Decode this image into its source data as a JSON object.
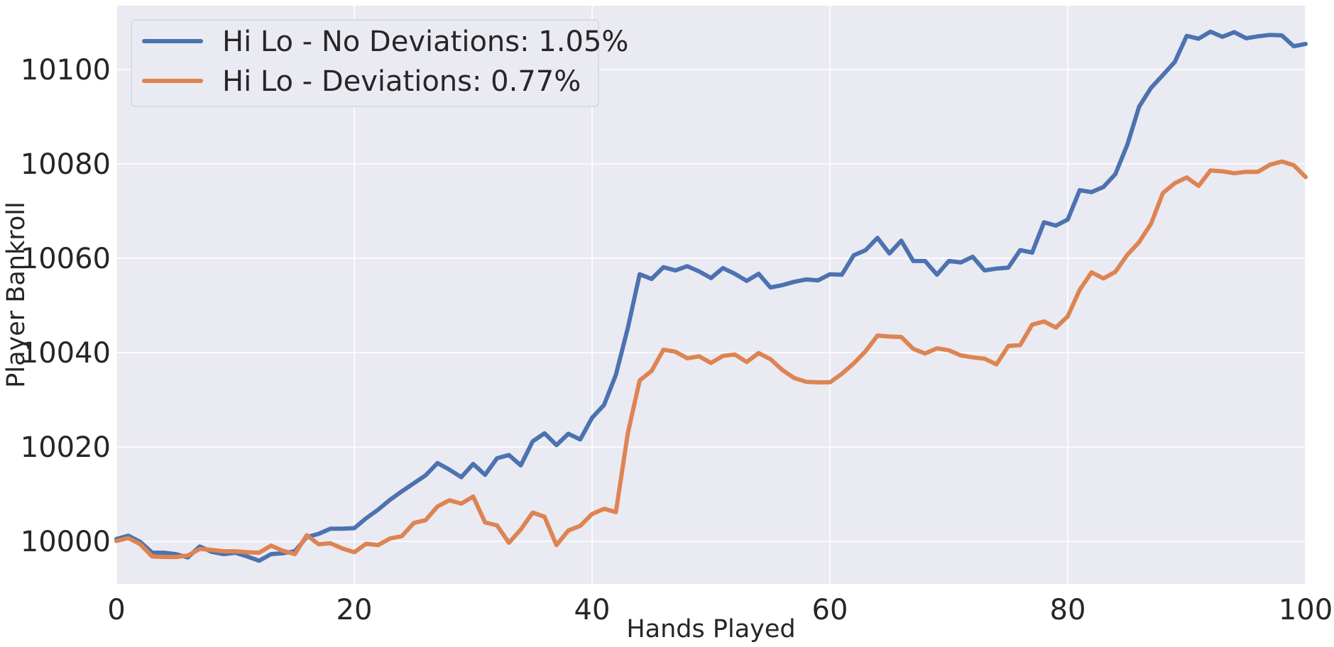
{
  "chart_data": {
    "type": "line",
    "title": "",
    "xlabel": "Hands Played",
    "ylabel": "Player Bankroll",
    "xlim": [
      0,
      100
    ],
    "ylim": [
      9991,
      10113.5
    ],
    "xticks": [
      0,
      20,
      40,
      60,
      80,
      100
    ],
    "xtick_labels": [
      "0",
      "20",
      "40",
      "60",
      "80",
      "100"
    ],
    "yticks": [
      10000,
      10020,
      10040,
      10060,
      10080,
      10100
    ],
    "ytick_labels": [
      "10000",
      "10020",
      "10040",
      "10060",
      "10080",
      "10100"
    ],
    "grid": true,
    "legend_position": "top-left",
    "background_color": "#eaeaf2",
    "grid_color": "#ffffff",
    "x": [
      0,
      1,
      2,
      3,
      4,
      5,
      6,
      7,
      8,
      9,
      10,
      11,
      12,
      13,
      14,
      15,
      16,
      17,
      18,
      19,
      20,
      21,
      22,
      23,
      24,
      25,
      26,
      27,
      28,
      29,
      30,
      31,
      32,
      33,
      34,
      35,
      36,
      37,
      38,
      39,
      40,
      41,
      42,
      43,
      44,
      45,
      46,
      47,
      48,
      49,
      50,
      51,
      52,
      53,
      54,
      55,
      56,
      57,
      58,
      59,
      60,
      61,
      62,
      63,
      64,
      65,
      66,
      67,
      68,
      69,
      70,
      71,
      72,
      73,
      74,
      75,
      76,
      77,
      78,
      79,
      80,
      81,
      82,
      83,
      84,
      85,
      86,
      87,
      88,
      89,
      90,
      91,
      92,
      93,
      94,
      95,
      96,
      97,
      98,
      99,
      100
    ],
    "series": [
      {
        "name": "Hi Lo - No Deviations: 1.05%",
        "color": "#4c72b0",
        "values": [
          10000.5,
          10001.2,
          9999.9,
          9997.6,
          9997.6,
          9997.3,
          9996.6,
          9998.9,
          9997.8,
          9997.3,
          9997.6,
          9996.8,
          9995.9,
          9997.3,
          9997.5,
          9997.9,
          10000.9,
          10001.6,
          10002.7,
          10002.7,
          10002.8,
          10004.9,
          10006.7,
          10008.8,
          10010.6,
          10012.3,
          10014.0,
          10016.6,
          10015.2,
          10013.6,
          10016.4,
          10014.1,
          10017.6,
          10018.3,
          10016.1,
          10021.2,
          10022.9,
          10020.4,
          10022.8,
          10021.6,
          10026.2,
          10028.9,
          10035.3,
          10045.2,
          10056.6,
          10055.6,
          10058.1,
          10057.4,
          10058.3,
          10057.2,
          10055.8,
          10057.9,
          10056.7,
          10055.2,
          10056.7,
          10053.8,
          10054.3,
          10055.0,
          10055.5,
          10055.3,
          10056.6,
          10056.5,
          10060.6,
          10061.7,
          10064.3,
          10061.0,
          10063.7,
          10059.4,
          10059.4,
          10056.5,
          10059.4,
          10059.1,
          10060.3,
          10057.4,
          10057.8,
          10058.0,
          10061.7,
          10061.2,
          10067.6,
          10066.9,
          10068.2,
          10074.4,
          10074.0,
          10075.1,
          10077.8,
          10084.0,
          10092.1,
          10096.1,
          10098.8,
          10101.6,
          10107.1,
          10106.5,
          10108.0,
          10106.9,
          10107.9,
          10106.6,
          10107.0,
          10107.3,
          10107.2,
          10104.9,
          10105.4
        ]
      },
      {
        "name": "Hi Lo - Deviations: 0.77%",
        "color": "#dd8452",
        "values": [
          10000.1,
          10000.7,
          9999.4,
          9996.8,
          9996.7,
          9996.7,
          9997.0,
          9998.4,
          9998.2,
          9997.9,
          9997.9,
          9997.7,
          9997.6,
          9999.1,
          9998.0,
          9997.3,
          10001.3,
          9999.4,
          9999.6,
          9998.5,
          9997.7,
          9999.5,
          9999.2,
          10000.6,
          10001.1,
          10003.9,
          10004.5,
          10007.4,
          10008.7,
          10008.0,
          10009.5,
          10004.0,
          10003.4,
          9999.7,
          10002.5,
          10006.1,
          10005.2,
          9999.2,
          10002.3,
          10003.3,
          10005.8,
          10006.9,
          10006.2,
          10022.9,
          10034.1,
          10036.1,
          10040.6,
          10040.2,
          10038.8,
          10039.2,
          10037.8,
          10039.3,
          10039.6,
          10038.0,
          10039.9,
          10038.6,
          10036.3,
          10034.6,
          10033.8,
          10033.7,
          10033.7,
          10035.5,
          10037.7,
          10040.3,
          10043.6,
          10043.4,
          10043.3,
          10040.8,
          10039.8,
          10040.9,
          10040.5,
          10039.4,
          10039.0,
          10038.7,
          10037.5,
          10041.4,
          10041.6,
          10045.9,
          10046.6,
          10045.3,
          10047.7,
          10053.3,
          10057.0,
          10055.7,
          10057.1,
          10060.7,
          10063.4,
          10067.3,
          10073.8,
          10075.9,
          10077.1,
          10075.3,
          10078.6,
          10078.4,
          10078.0,
          10078.3,
          10078.3,
          10079.8,
          10080.5,
          10079.7,
          10077.2
        ]
      }
    ]
  }
}
